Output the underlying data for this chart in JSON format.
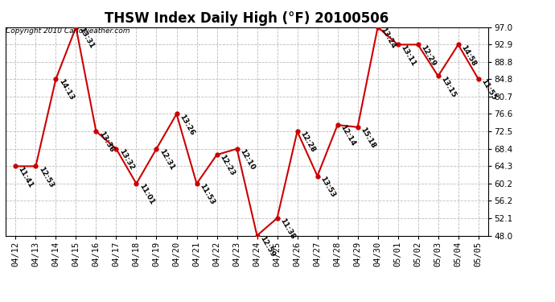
{
  "title": "THSW Index Daily High (°F) 20100506",
  "copyright": "Copyright 2010 Carloweather.com",
  "dates": [
    "04/12",
    "04/13",
    "04/14",
    "04/15",
    "04/16",
    "04/17",
    "04/18",
    "04/19",
    "04/20",
    "04/21",
    "04/22",
    "04/23",
    "04/24",
    "04/25",
    "04/26",
    "04/27",
    "04/28",
    "04/29",
    "04/30",
    "05/01",
    "05/02",
    "05/03",
    "05/04",
    "05/05"
  ],
  "values": [
    64.3,
    64.3,
    84.8,
    97.0,
    72.5,
    68.4,
    60.2,
    68.4,
    76.6,
    60.2,
    67.0,
    68.4,
    48.0,
    52.1,
    72.5,
    62.0,
    74.0,
    73.5,
    97.0,
    92.9,
    92.9,
    85.5,
    92.9,
    84.8
  ],
  "labels": [
    "11:41",
    "12:53",
    "14:13",
    "13:31",
    "13:36",
    "13:32",
    "11:01",
    "12:31",
    "13:26",
    "11:53",
    "12:23",
    "12:10",
    "12:59",
    "11:38",
    "12:28",
    "13:53",
    "12:14",
    "15:18",
    "13:24",
    "13:11",
    "12:29",
    "13:15",
    "14:58",
    "11:55"
  ],
  "ylim": [
    48.0,
    97.0
  ],
  "yticks": [
    48.0,
    52.1,
    56.2,
    60.2,
    64.3,
    68.4,
    72.5,
    76.6,
    80.7,
    84.8,
    88.8,
    92.9,
    97.0
  ],
  "line_color": "#cc0000",
  "marker_color": "#cc0000",
  "bg_color": "#ffffff",
  "grid_color": "#bbbbbb",
  "label_fontsize": 6.5,
  "title_fontsize": 12,
  "copyright_fontsize": 6.5,
  "tick_fontsize": 7.5
}
